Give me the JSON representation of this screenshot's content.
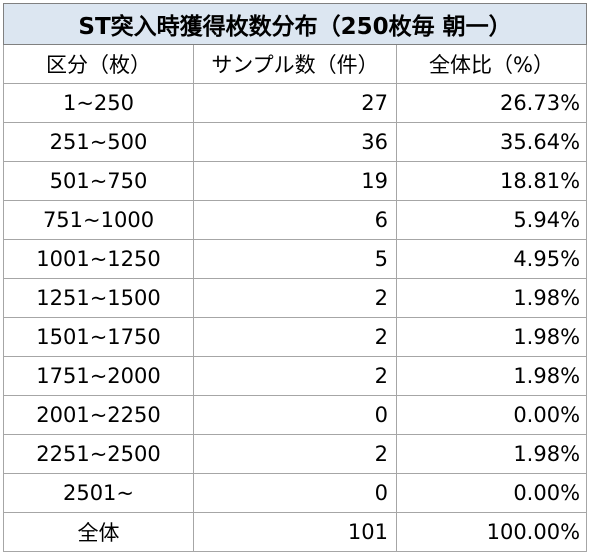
{
  "table": {
    "title": "ST突入時獲得枚数分布（250枚毎 朝一）",
    "headers": [
      "区分（枚）",
      "サンプル数（件）",
      "全体比（%）"
    ],
    "rows": [
      {
        "range": "1~250",
        "count": "27",
        "pct": "26.73%"
      },
      {
        "range": "251~500",
        "count": "36",
        "pct": "35.64%"
      },
      {
        "range": "501~750",
        "count": "19",
        "pct": "18.81%"
      },
      {
        "range": "751~1000",
        "count": "6",
        "pct": "5.94%"
      },
      {
        "range": "1001~1250",
        "count": "5",
        "pct": "4.95%"
      },
      {
        "range": "1251~1500",
        "count": "2",
        "pct": "1.98%"
      },
      {
        "range": "1501~1750",
        "count": "2",
        "pct": "1.98%"
      },
      {
        "range": "1751~2000",
        "count": "2",
        "pct": "1.98%"
      },
      {
        "range": "2001~2250",
        "count": "0",
        "pct": "0.00%"
      },
      {
        "range": "2251~2500",
        "count": "2",
        "pct": "1.98%"
      },
      {
        "range": "2501~",
        "count": "0",
        "pct": "0.00%"
      }
    ],
    "total": {
      "range": "全体",
      "count": "101",
      "pct": "100.00%"
    }
  },
  "colors": {
    "title_background": "#dce6f1",
    "border": "#a6a6a6"
  }
}
